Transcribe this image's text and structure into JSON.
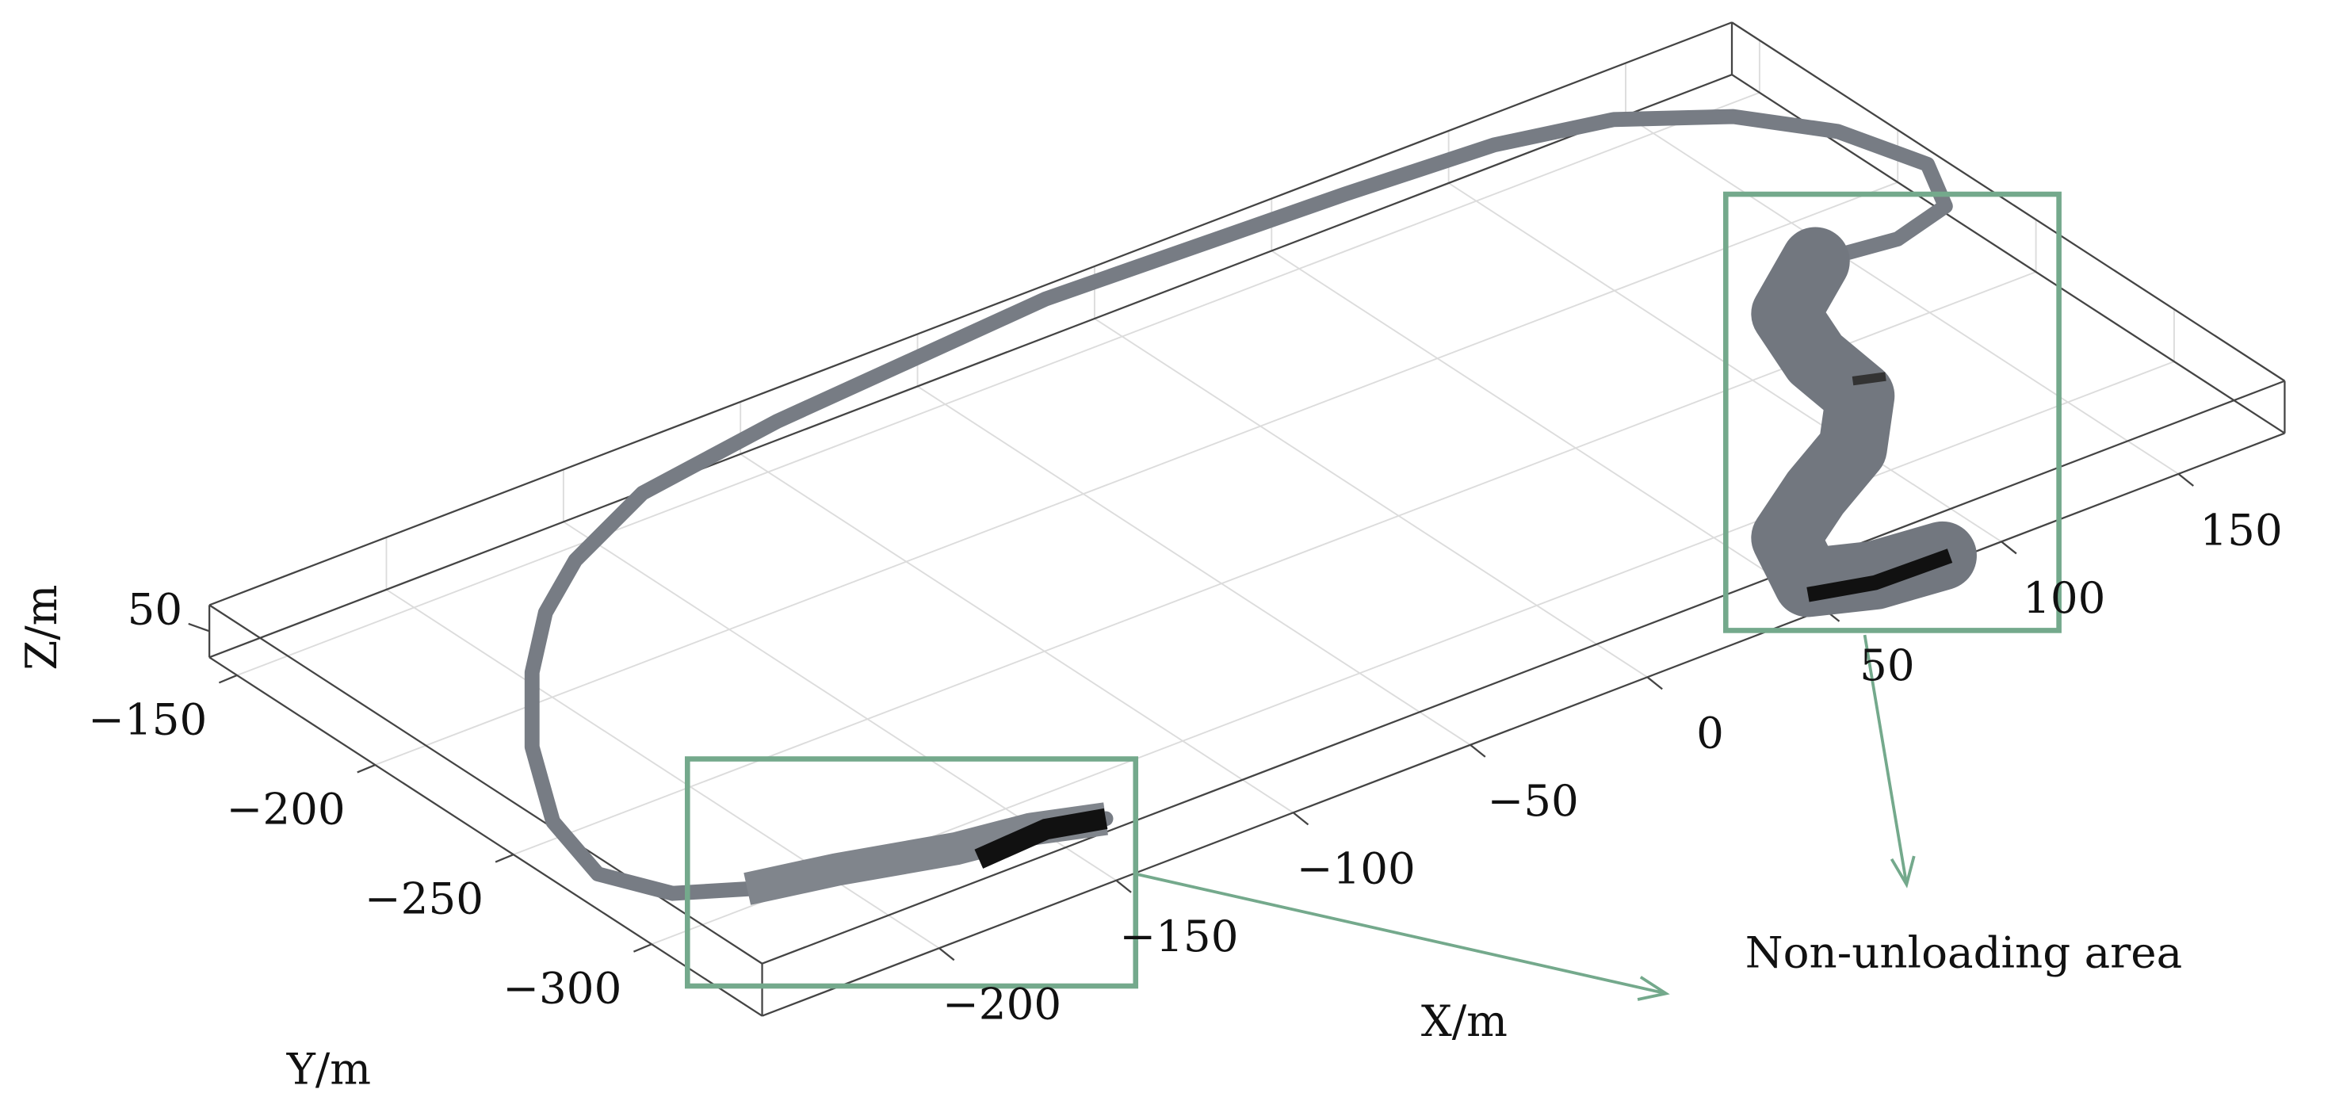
{
  "chart_data": {
    "type": "scatter3d",
    "xlabel": "X/m",
    "ylabel": "Y/m",
    "zlabel": "Z/m",
    "xlim": [
      -250,
      180
    ],
    "ylim": [
      -340,
      -140
    ],
    "zlim": [
      40,
      60
    ],
    "xticks": [
      {
        "value": -200,
        "label": "−200"
      },
      {
        "value": -150,
        "label": "−150"
      },
      {
        "value": -100,
        "label": "−100"
      },
      {
        "value": -50,
        "label": "−50"
      },
      0,
      50,
      100,
      150
    ],
    "yticks": [
      {
        "value": -150,
        "label": "−150"
      },
      {
        "value": -200,
        "label": "−200"
      },
      {
        "value": -250,
        "label": "−250"
      },
      {
        "value": -300,
        "label": "−300"
      }
    ],
    "zticks": [
      50
    ],
    "grid": true,
    "annotation": "Non-unloading area"
  }
}
